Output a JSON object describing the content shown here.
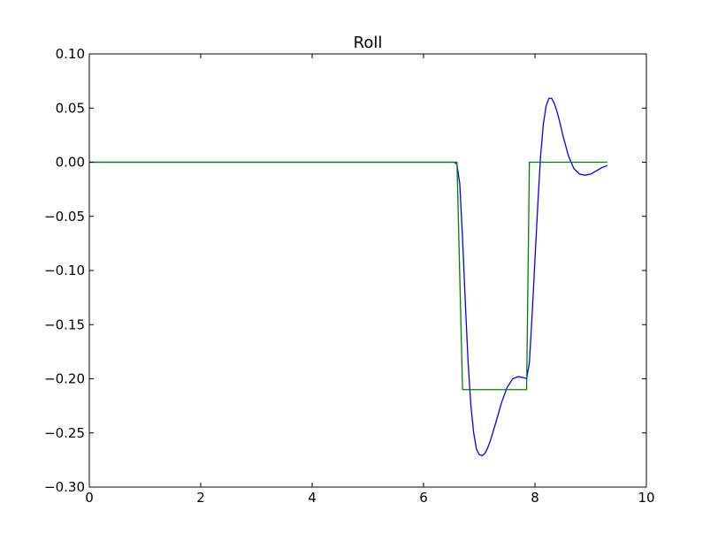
{
  "chart_data": {
    "type": "line",
    "title": "Roll",
    "xlabel": "",
    "ylabel": "",
    "xlim": [
      0,
      10
    ],
    "ylim": [
      -0.3,
      0.1
    ],
    "x_ticks": [
      0,
      2,
      4,
      6,
      8,
      10
    ],
    "x_tick_labels": [
      "0",
      "2",
      "4",
      "6",
      "8",
      "10"
    ],
    "y_ticks": [
      0.1,
      0.05,
      0.0,
      -0.05,
      -0.1,
      -0.15,
      -0.2,
      -0.25,
      -0.3
    ],
    "y_tick_labels": [
      "0.10",
      "0.05",
      "0.00",
      "−0.05",
      "−0.10",
      "−0.15",
      "−0.20",
      "−0.25",
      "−0.30"
    ],
    "grid": false,
    "series": [
      {
        "color": "#0000ff",
        "x": [
          0,
          6.5,
          6.55,
          6.6,
          6.65,
          6.7,
          6.75,
          6.8,
          6.85,
          6.9,
          6.95,
          7.0,
          7.05,
          7.1,
          7.15,
          7.2,
          7.3,
          7.4,
          7.5,
          7.6,
          7.7,
          7.8,
          7.85,
          7.9,
          7.95,
          8.0,
          8.05,
          8.1,
          8.15,
          8.2,
          8.25,
          8.3,
          8.35,
          8.4,
          8.45,
          8.5,
          8.6,
          8.7,
          8.8,
          8.9,
          9.0,
          9.1,
          9.2,
          9.3
        ],
        "y": [
          0,
          0,
          0,
          -0.002,
          -0.02,
          -0.07,
          -0.13,
          -0.185,
          -0.225,
          -0.25,
          -0.265,
          -0.27,
          -0.271,
          -0.269,
          -0.264,
          -0.257,
          -0.24,
          -0.222,
          -0.208,
          -0.2,
          -0.198,
          -0.199,
          -0.2,
          -0.185,
          -0.14,
          -0.09,
          -0.04,
          0.005,
          0.035,
          0.052,
          0.059,
          0.059,
          0.054,
          0.046,
          0.036,
          0.025,
          0.006,
          -0.006,
          -0.011,
          -0.012,
          -0.011,
          -0.008,
          -0.005,
          -0.003
        ]
      },
      {
        "color": "#008000",
        "x": [
          0,
          6.6,
          6.7,
          7.85,
          7.9,
          9.3
        ],
        "y": [
          0,
          0,
          -0.21,
          -0.21,
          0,
          0
        ]
      }
    ]
  }
}
